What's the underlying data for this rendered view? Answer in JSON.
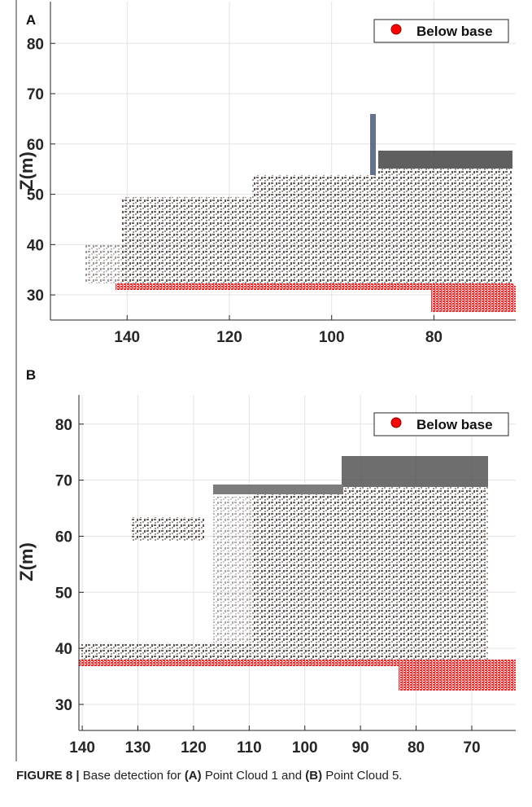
{
  "chart_data": [
    {
      "type": "scatter",
      "panel": "A",
      "ylabel": "Z(m)",
      "xlim": [
        155,
        64
      ],
      "ylim": [
        25,
        88.3
      ],
      "xticks": [
        140,
        120,
        100,
        80
      ],
      "yticks": [
        30,
        40,
        50,
        60,
        70,
        80
      ],
      "x_reversed": true,
      "grid": true,
      "legend": "upper right",
      "series": [
        {
          "name": "Below base",
          "color": "#ff0000"
        }
      ]
    },
    {
      "type": "scatter",
      "panel": "B",
      "ylabel": "Z(m)",
      "xlim": [
        140.6,
        62.1
      ],
      "ylim": [
        25.35,
        85.2
      ],
      "xticks": [
        140,
        130,
        120,
        110,
        100,
        90,
        80,
        70
      ],
      "yticks": [
        30,
        40,
        50,
        60,
        70,
        80
      ],
      "x_reversed": true,
      "grid": true,
      "legend": "upper right",
      "series": [
        {
          "name": "Below base",
          "color": "#ff0000"
        }
      ]
    }
  ],
  "caption": {
    "label": "FIGURE 8 |",
    "t1": "Base detection for",
    "a": "(A)",
    "t2": "Point Cloud 1 and",
    "b": "(B)",
    "t3": "Point Cloud 5."
  }
}
